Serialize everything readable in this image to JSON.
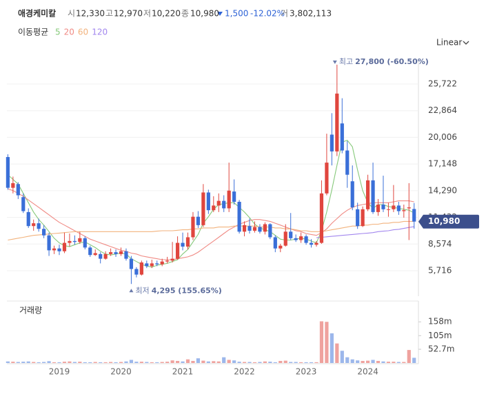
{
  "header": {
    "name": "애경케미칼",
    "fields": [
      {
        "label": "시",
        "value": "12,330"
      },
      {
        "label": "고",
        "value": "12,970"
      },
      {
        "label": "저",
        "value": "10,220"
      },
      {
        "label": "종",
        "value": "10,980"
      }
    ],
    "change": "1,500",
    "change_pct": "-12.02%",
    "volume_label": "거",
    "volume_value": "3,802,113",
    "ma_label": "이동평균",
    "scale_button": "Linear"
  },
  "chart_data": {
    "type": "candlestick",
    "up_color": "#e0463e",
    "down_color": "#3a6fd8",
    "categories": [
      null,
      null,
      null,
      null,
      null,
      null,
      null,
      null,
      null,
      null,
      "2019",
      null,
      null,
      null,
      null,
      null,
      null,
      null,
      null,
      null,
      null,
      null,
      "2020",
      null,
      null,
      null,
      null,
      null,
      null,
      null,
      null,
      null,
      null,
      null,
      "2021",
      null,
      null,
      null,
      null,
      null,
      null,
      null,
      null,
      null,
      null,
      null,
      "2022",
      null,
      null,
      null,
      null,
      null,
      null,
      null,
      null,
      null,
      null,
      null,
      "2023",
      null,
      null,
      null,
      null,
      null,
      null,
      null,
      null,
      null,
      null,
      null,
      "2024",
      null,
      null,
      null,
      null,
      null,
      null,
      null,
      null,
      null
    ],
    "open": [
      17900,
      14600,
      15000,
      13600,
      12000,
      10500,
      10800,
      10200,
      9500,
      7900,
      8100,
      7800,
      8700,
      8900,
      8800,
      9200,
      8200,
      7400,
      7500,
      7000,
      7500,
      7700,
      7500,
      7800,
      7000,
      5900,
      5300,
      6500,
      6200,
      6500,
      6400,
      6700,
      6800,
      7000,
      8700,
      8300,
      9300,
      11500,
      10600,
      14100,
      12200,
      12700,
      13200,
      12400,
      14200,
      13100,
      9900,
      10500,
      10000,
      10400,
      9900,
      10700,
      9300,
      8100,
      8400,
      9900,
      9200,
      9000,
      9400,
      8700,
      8500,
      8700,
      14000,
      20300,
      18500,
      21500,
      18600,
      15300,
      12300,
      10500,
      12300,
      15400,
      12000,
      12800,
      12300,
      12300,
      12700,
      12100,
      12400,
      12330
    ],
    "high": [
      18200,
      15800,
      15200,
      14000,
      12400,
      11200,
      11300,
      10600,
      9800,
      8400,
      8500,
      9800,
      9700,
      9500,
      9900,
      9400,
      8400,
      8000,
      7700,
      7800,
      8100,
      8000,
      8200,
      8100,
      7300,
      6100,
      6800,
      6800,
      6900,
      6800,
      7000,
      7200,
      8800,
      9400,
      9800,
      9800,
      12000,
      12100,
      15000,
      14400,
      13700,
      14000,
      13800,
      17300,
      15500,
      13300,
      11000,
      11300,
      11000,
      10700,
      10900,
      10800,
      9500,
      8600,
      10700,
      11900,
      9600,
      9800,
      9600,
      9100,
      8900,
      15400,
      20400,
      22600,
      27800,
      24200,
      19600,
      17000,
      13000,
      12600,
      16000,
      17300,
      13400,
      15900,
      13000,
      14900,
      13100,
      12800,
      15100,
      12970
    ],
    "low": [
      14400,
      14000,
      13400,
      11900,
      10300,
      10000,
      9900,
      9200,
      7300,
      7500,
      7400,
      7600,
      8300,
      8500,
      8600,
      8000,
      7200,
      7300,
      6500,
      6900,
      7300,
      7200,
      7300,
      6800,
      4295,
      5000,
      5200,
      6000,
      6000,
      6200,
      6200,
      6500,
      6600,
      6900,
      7900,
      8000,
      9000,
      10300,
      10400,
      11800,
      12000,
      12000,
      12000,
      12000,
      12800,
      9700,
      9400,
      9700,
      9800,
      9700,
      9600,
      9100,
      7700,
      7700,
      8300,
      9000,
      8800,
      8700,
      8500,
      8200,
      8300,
      8600,
      13800,
      17000,
      18000,
      18300,
      14600,
      12200,
      10200,
      10400,
      12100,
      11800,
      11600,
      12000,
      11500,
      12000,
      11700,
      11400,
      9000,
      10220
    ],
    "close": [
      14600,
      15100,
      13800,
      12100,
      10500,
      10800,
      10200,
      9500,
      7900,
      8100,
      7800,
      8700,
      8900,
      8800,
      9200,
      8200,
      7400,
      7600,
      7000,
      7500,
      7700,
      7500,
      7800,
      7000,
      5900,
      5300,
      6600,
      6200,
      6500,
      6400,
      6700,
      6800,
      7000,
      8700,
      8300,
      9300,
      11500,
      10600,
      14100,
      12200,
      12700,
      13200,
      12400,
      14300,
      13100,
      9900,
      10600,
      10000,
      10400,
      9900,
      10700,
      9300,
      8100,
      8400,
      9900,
      9200,
      9000,
      9400,
      8700,
      8500,
      8700,
      14000,
      17300,
      18500,
      24700,
      18600,
      16000,
      12500,
      10500,
      12300,
      15400,
      12000,
      12800,
      12300,
      12300,
      12700,
      12100,
      12200,
      12500,
      10980
    ],
    "ylim": [
      2985,
      28084
    ],
    "yticks": [
      {
        "value": 25722,
        "label": "25,722"
      },
      {
        "value": 22864,
        "label": "22,864"
      },
      {
        "value": 20006,
        "label": "20,006"
      },
      {
        "value": 17148,
        "label": "17,148"
      },
      {
        "value": 14290,
        "label": "14,290"
      },
      {
        "value": 11432,
        "label": "11,432"
      },
      {
        "value": 8574,
        "label": "8,574"
      },
      {
        "value": 5716,
        "label": "5,716"
      }
    ],
    "grid": true,
    "current": {
      "value": 10980,
      "label": "10,980"
    },
    "high_note": {
      "prefix": "최고",
      "text": "27,800 (-60.50%)"
    },
    "low_note": {
      "prefix": "최저",
      "text": "4,295 (155.65%)"
    },
    "ma_series": [
      {
        "name": "5",
        "color": "#86c97a",
        "values": [
          16000,
          15500,
          15000,
          14000,
          13000,
          12000,
          11200,
          10600,
          9900,
          9200,
          8700,
          8400,
          8300,
          8500,
          8700,
          8800,
          8500,
          8200,
          7800,
          7500,
          7400,
          7500,
          7600,
          7500,
          7000,
          6700,
          6400,
          6200,
          6100,
          6300,
          6400,
          6500,
          6700,
          6900,
          7500,
          8000,
          8800,
          9600,
          10800,
          11500,
          12300,
          12800,
          12900,
          13000,
          13000,
          12500,
          12000,
          11400,
          10700,
          10300,
          10100,
          9900,
          9500,
          9100,
          9000,
          9000,
          9100,
          9200,
          9100,
          8900,
          8700,
          10000,
          12000,
          14400,
          17000,
          19500,
          19700,
          19000,
          16500,
          14300,
          13000,
          12400,
          12800,
          12800,
          12600,
          12500,
          12400,
          12300,
          12200,
          11900
        ]
      },
      {
        "name": "20",
        "color": "#f08a84",
        "values": [
          14500,
          14300,
          14000,
          13700,
          13300,
          12900,
          12500,
          12100,
          11700,
          11300,
          10900,
          10600,
          10300,
          10000,
          9700,
          9400,
          9100,
          8900,
          8700,
          8500,
          8300,
          8100,
          7900,
          7800,
          7600,
          7500,
          7300,
          7200,
          7100,
          7000,
          6900,
          6900,
          6900,
          7000,
          7100,
          7200,
          7400,
          7700,
          8100,
          8500,
          8900,
          9300,
          9700,
          10100,
          10400,
          10700,
          10900,
          11100,
          11200,
          11200,
          11100,
          11000,
          10800,
          10600,
          10400,
          10200,
          10000,
          9900,
          9700,
          9600,
          9500,
          9800,
          10200,
          10800,
          11300,
          11800,
          12200,
          12500,
          12700,
          12800,
          12900,
          13000,
          13000,
          13000,
          13000,
          13100,
          13200,
          13200,
          13200,
          13100
        ]
      },
      {
        "name": "60",
        "color": "#f2b27c",
        "values": [
          9000,
          9100,
          9200,
          9300,
          9400,
          9500,
          9550,
          9600,
          9650,
          9700,
          9750,
          9800,
          9850,
          9900,
          9900,
          9900,
          9900,
          9900,
          9900,
          9900,
          9900,
          9900,
          9900,
          9900,
          9900,
          9900,
          9900,
          9900,
          9900,
          9950,
          10000,
          10000,
          10000,
          10050,
          10100,
          10100,
          10200,
          10200,
          10300,
          10300,
          10300,
          10400,
          10400,
          10400,
          10500,
          10500,
          10500,
          10500,
          10500,
          10400,
          10400,
          10400,
          10300,
          10300,
          10200,
          10200,
          10100,
          10000,
          10000,
          9900,
          9900,
          9900,
          10000,
          10100,
          10200,
          10300,
          10400,
          10500,
          10500,
          10600,
          10600,
          10700,
          10700,
          10800,
          10800,
          10900,
          10900,
          11000,
          11000,
          11000
        ]
      },
      {
        "name": "120",
        "color": "#a286ee",
        "values": [
          null,
          null,
          null,
          null,
          null,
          null,
          null,
          null,
          null,
          null,
          null,
          null,
          null,
          null,
          null,
          null,
          null,
          null,
          null,
          null,
          null,
          null,
          null,
          null,
          null,
          null,
          null,
          null,
          null,
          null,
          null,
          null,
          null,
          null,
          null,
          null,
          null,
          null,
          null,
          null,
          null,
          null,
          null,
          null,
          null,
          null,
          null,
          null,
          null,
          null,
          null,
          null,
          null,
          null,
          null,
          null,
          null,
          null,
          null,
          null,
          9250,
          9300,
          9350,
          9400,
          9450,
          9500,
          9550,
          9600,
          9650,
          9700,
          9750,
          9800,
          9900,
          9950,
          10000,
          10100,
          10150,
          10250,
          10350,
          10430
        ]
      }
    ],
    "volume_title": "거래량",
    "volume": [
      6,
      5,
      4,
      5,
      6,
      4,
      3,
      4,
      7,
      3,
      3,
      5,
      6,
      4,
      5,
      3,
      3,
      4,
      3,
      3,
      4,
      3,
      4,
      6,
      12,
      5,
      5,
      4,
      3,
      3,
      4,
      5,
      10,
      8,
      6,
      14,
      8,
      18,
      9,
      6,
      7,
      6,
      22,
      12,
      10,
      5,
      4,
      4,
      3,
      4,
      6,
      5,
      3,
      8,
      9,
      4,
      4,
      3,
      3,
      3,
      3,
      160,
      158,
      114,
      75,
      47,
      22,
      14,
      10,
      8,
      9,
      12,
      8,
      6,
      5,
      5,
      4,
      4,
      50,
      20
    ],
    "volume_ylim": [
      0,
      230
    ],
    "volume_yticks": [
      {
        "value": 158,
        "label": "158m"
      },
      {
        "value": 105,
        "label": "105m"
      },
      {
        "value": 52.7,
        "label": "52.7m"
      }
    ]
  }
}
